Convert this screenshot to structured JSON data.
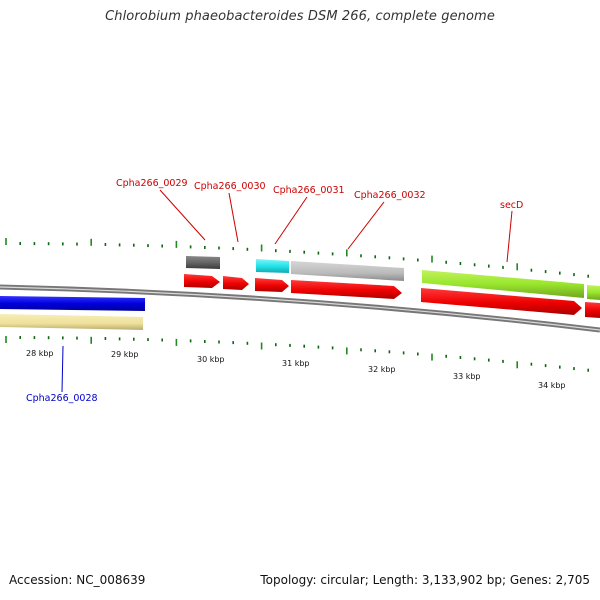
{
  "title": "Chlorobium phaeobacteroides DSM 266, complete genome",
  "footer": {
    "accession": "Accession: NC_008639",
    "summary": "Topology: circular; Length: 3,133,902 bp; Genes: 2,705"
  },
  "ticks": [
    "28 kbp",
    "29 kbp",
    "30 kbp",
    "31 kbp",
    "32 kbp",
    "33 kbp",
    "34 kbp"
  ],
  "labels": {
    "cpha_0028": "Cpha266_0028",
    "cpha_0029": "Cpha266_0029",
    "cpha_0030": "Cpha266_0030",
    "cpha_0031": "Cpha266_0031",
    "cpha_0032": "Cpha266_0032",
    "secd": "secD"
  },
  "colors": {
    "title": "#333333",
    "backbone": "#808080",
    "cds_forward": "#ee0000",
    "label_forward": "#cc0000",
    "label_reverse": "#0000cc",
    "gene_0028": "#0000dd",
    "gene_0028_band": "#eee099",
    "gene_0029": "#666666",
    "gene_0030": "#22e5ea",
    "gene_0031": "#bbbbbb",
    "gene_secd": "#99e62e",
    "tick_major": "#228822",
    "tick_minor": "#116611"
  }
}
